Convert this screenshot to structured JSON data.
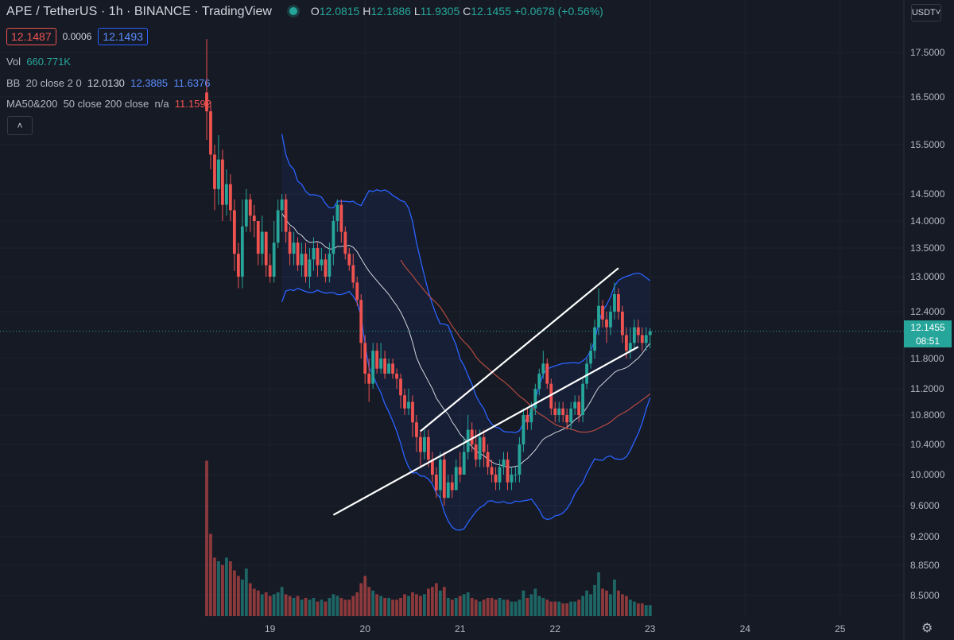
{
  "header": {
    "symbol": "APE / TetherUS",
    "interval": "1h",
    "exchange": "BINANCE",
    "source": "TradingView",
    "ohlc": {
      "o_label": "O",
      "o": "12.0815",
      "h_label": "H",
      "h": "12.1886",
      "l_label": "L",
      "l": "11.9305",
      "c_label": "C",
      "c": "12.1455",
      "change": "+0.0678 (+0.56%)"
    }
  },
  "trade": {
    "sell": "12.1487",
    "spread": "0.0006",
    "buy": "12.1493"
  },
  "indicators": {
    "vol": {
      "name": "Vol",
      "value": "660.771K"
    },
    "bb": {
      "name": "BB",
      "params": "20 close 2 0",
      "basis": "12.0130",
      "upper": "12.3885",
      "lower": "11.6376"
    },
    "ma": {
      "name": "MA50&200",
      "params": "50 close 200 close",
      "ma1": "n/a",
      "ma2": "11.1592"
    }
  },
  "currency": "USDT",
  "last_price": {
    "value": "12.1455",
    "countdown": "08:51"
  },
  "colors": {
    "up": "#26a69a",
    "down": "#ef5350",
    "bb": "#2962ff",
    "ma": "#b24a3f",
    "basis": "#d1d4dc",
    "channel": "#ffffff"
  },
  "chart_data": {
    "type": "candlestick",
    "y_ticks": [
      "17.5000",
      "16.5000",
      "15.5000",
      "14.5000",
      "14.0000",
      "13.5000",
      "13.0000",
      "12.4000",
      "11.8000",
      "11.2000",
      "10.8000",
      "10.4000",
      "10.0000",
      "9.6000",
      "9.2000",
      "8.8500",
      "8.5000"
    ],
    "x_ticks": [
      "19",
      "20",
      "21",
      "22",
      "23",
      "24",
      "25"
    ],
    "x_tick_hours": [
      16,
      40,
      64,
      88,
      112,
      136,
      160
    ],
    "close": [
      16.2,
      15.3,
      14.6,
      15.2,
      14.3,
      14.7,
      14.2,
      13.4,
      13.0,
      13.9,
      14.4,
      14.1,
      14.0,
      13.4,
      13.8,
      13.2,
      13.0,
      13.6,
      14.2,
      14.4,
      13.8,
      13.4,
      13.6,
      13.2,
      13.4,
      13.0,
      13.3,
      13.5,
      13.2,
      13.3,
      13.0,
      13.4,
      14.0,
      14.3,
      13.8,
      13.4,
      13.2,
      12.9,
      12.6,
      12.0,
      11.5,
      11.3,
      11.9,
      11.6,
      11.8,
      11.5,
      11.7,
      11.5,
      11.4,
      11.1,
      10.9,
      11.0,
      10.7,
      10.5,
      10.3,
      10.5,
      10.2,
      10.0,
      9.8,
      10.2,
      9.7,
      9.9,
      9.8,
      10.1,
      10.0,
      10.3,
      10.6,
      10.4,
      10.2,
      10.5,
      10.3,
      10.1,
      10.0,
      9.9,
      10.1,
      10.2,
      9.9,
      10.0,
      10.0,
      10.4,
      10.8,
      10.7,
      10.9,
      11.2,
      11.5,
      11.7,
      11.3,
      10.9,
      10.8,
      10.9,
      10.8,
      10.7,
      10.9,
      11.0,
      10.8,
      11.3,
      11.7,
      11.9,
      12.2,
      12.5,
      12.3,
      12.2,
      12.4,
      12.7,
      12.4,
      12.1,
      11.9,
      12.0,
      12.2,
      12.1,
      12.0,
      12.1,
      12.15
    ],
    "high": [
      17.8,
      16.4,
      15.5,
      15.7,
      15.4,
      15.0,
      14.9,
      14.4,
      13.6,
      14.4,
      14.6,
      14.5,
      14.3,
      14.0,
      14.1,
      13.8,
      13.4,
      14.0,
      14.4,
      14.5,
      14.5,
      13.9,
      13.8,
      13.7,
      13.6,
      13.6,
      13.5,
      13.7,
      13.6,
      13.5,
      13.4,
      13.6,
      14.1,
      14.4,
      14.4,
      13.9,
      13.5,
      13.4,
      13.0,
      12.7,
      12.1,
      11.8,
      12.0,
      12.0,
      12.0,
      11.9,
      11.8,
      11.8,
      11.6,
      11.5,
      11.2,
      11.2,
      11.1,
      10.8,
      10.6,
      10.6,
      10.6,
      10.3,
      10.1,
      10.3,
      10.3,
      10.0,
      10.0,
      10.2,
      10.3,
      10.5,
      10.8,
      10.7,
      10.6,
      10.6,
      10.6,
      10.4,
      10.2,
      10.1,
      10.2,
      10.3,
      10.3,
      10.1,
      10.1,
      10.5,
      10.9,
      10.9,
      11.0,
      11.3,
      11.6,
      11.9,
      11.8,
      11.4,
      11.0,
      11.0,
      11.0,
      10.9,
      11.0,
      11.1,
      11.1,
      11.4,
      11.8,
      12.0,
      12.3,
      12.8,
      12.6,
      12.4,
      12.5,
      12.9,
      12.8,
      12.5,
      12.2,
      12.2,
      12.3,
      12.3,
      12.2,
      12.2,
      12.19
    ],
    "low": [
      15.6,
      15.0,
      14.2,
      14.3,
      14.0,
      14.1,
      14.0,
      13.1,
      12.8,
      12.8,
      13.8,
      13.8,
      13.7,
      13.2,
      13.2,
      13.0,
      12.9,
      12.9,
      13.5,
      13.8,
      13.6,
      13.2,
      13.2,
      13.1,
      13.0,
      12.9,
      12.8,
      13.1,
      13.0,
      13.1,
      12.9,
      12.9,
      13.2,
      13.8,
      13.6,
      13.3,
      13.1,
      12.8,
      12.5,
      11.8,
      11.3,
      11.0,
      11.2,
      11.5,
      11.5,
      11.4,
      11.5,
      11.4,
      11.2,
      10.9,
      10.8,
      10.8,
      10.5,
      10.3,
      10.1,
      10.2,
      10.1,
      9.9,
      9.7,
      9.7,
      9.6,
      9.7,
      9.7,
      9.8,
      9.9,
      10.0,
      10.2,
      10.3,
      10.1,
      10.1,
      10.1,
      10.0,
      9.9,
      9.8,
      9.8,
      10.0,
      9.8,
      9.8,
      9.9,
      9.9,
      10.3,
      10.6,
      10.6,
      10.8,
      11.1,
      11.4,
      11.2,
      10.8,
      10.7,
      10.7,
      10.7,
      10.6,
      10.6,
      10.8,
      10.7,
      10.7,
      11.2,
      11.6,
      11.8,
      12.1,
      12.2,
      12.0,
      12.1,
      12.3,
      12.3,
      12.0,
      11.8,
      11.8,
      11.9,
      12.0,
      11.9,
      11.9,
      11.93
    ],
    "volume_relative": [
      0.85,
      0.45,
      0.32,
      0.3,
      0.28,
      0.32,
      0.3,
      0.25,
      0.22,
      0.2,
      0.26,
      0.18,
      0.15,
      0.14,
      0.12,
      0.13,
      0.11,
      0.12,
      0.13,
      0.16,
      0.12,
      0.11,
      0.1,
      0.11,
      0.09,
      0.1,
      0.09,
      0.1,
      0.08,
      0.09,
      0.08,
      0.1,
      0.12,
      0.11,
      0.1,
      0.09,
      0.09,
      0.11,
      0.13,
      0.18,
      0.22,
      0.16,
      0.14,
      0.12,
      0.11,
      0.1,
      0.1,
      0.09,
      0.09,
      0.1,
      0.12,
      0.11,
      0.13,
      0.12,
      0.11,
      0.12,
      0.15,
      0.16,
      0.18,
      0.14,
      0.16,
      0.1,
      0.09,
      0.1,
      0.11,
      0.12,
      0.13,
      0.1,
      0.09,
      0.08,
      0.09,
      0.1,
      0.1,
      0.09,
      0.1,
      0.09,
      0.09,
      0.08,
      0.08,
      0.09,
      0.14,
      0.1,
      0.12,
      0.15,
      0.11,
      0.1,
      0.09,
      0.08,
      0.08,
      0.08,
      0.07,
      0.07,
      0.08,
      0.08,
      0.09,
      0.11,
      0.14,
      0.12,
      0.17,
      0.24,
      0.15,
      0.14,
      0.12,
      0.2,
      0.14,
      0.12,
      0.11,
      0.09,
      0.08,
      0.07,
      0.07,
      0.06,
      0.06
    ],
    "channel_lines": [
      {
        "from": [
          54,
          10.58
        ],
        "to": [
          104,
          13.15
        ]
      },
      {
        "from": [
          32,
          9.48
        ],
        "to": [
          109,
          11.95
        ]
      }
    ],
    "grid": true
  }
}
